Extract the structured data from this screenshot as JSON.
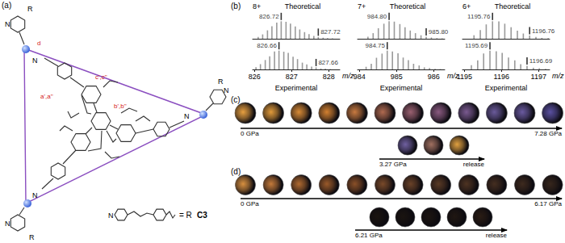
{
  "chart_data": [
    {
      "type": "bar",
      "title": "8+",
      "x_label": "m/z",
      "xlim": [
        825.95,
        828.3
      ],
      "xticks": [
        826,
        827,
        828
      ],
      "ylim": [
        0,
        120
      ],
      "tick_labels": "x",
      "color": "#9a9a9a",
      "series": [
        {
          "name": "Theoretical",
          "x": [
            826.1,
            826.22,
            826.35,
            826.47,
            826.6,
            826.72,
            826.85,
            826.97,
            827.1,
            827.22,
            827.35,
            827.47,
            827.6,
            827.72,
            827.85,
            827.97,
            828.1
          ],
          "values": [
            10,
            25,
            48,
            72,
            92,
            100,
            97,
            86,
            70,
            53,
            38,
            26,
            16,
            10,
            6,
            3,
            2
          ],
          "peak_labels": [
            {
              "value": 826.72,
              "label": "826.72"
            },
            {
              "value": 827.72,
              "label": "827.72"
            }
          ]
        },
        {
          "name": "Experimental",
          "x": [
            826.04,
            826.16,
            826.29,
            826.41,
            826.54,
            826.66,
            826.79,
            826.91,
            827.04,
            827.16,
            827.29,
            827.41,
            827.54,
            827.66,
            827.79,
            827.91,
            828.04
          ],
          "values": [
            12,
            28,
            50,
            70,
            95,
            100,
            94,
            88,
            68,
            55,
            36,
            27,
            15,
            11,
            5,
            4,
            2
          ],
          "peak_labels": [
            {
              "value": 826.66,
              "label": "826.66"
            },
            {
              "value": 827.66,
              "label": "827.66"
            }
          ]
        }
      ]
    },
    {
      "type": "bar",
      "title": "7+",
      "x_label": "m/z",
      "xlim": [
        983.95,
        986.3
      ],
      "xticks": [
        984,
        985,
        986
      ],
      "ylim": [
        0,
        120
      ],
      "tick_labels": "x",
      "color": "#9a9a9a",
      "series": [
        {
          "name": "Theoretical",
          "x": [
            984.23,
            984.37,
            984.51,
            984.66,
            984.8,
            984.94,
            985.09,
            985.23,
            985.37,
            985.51,
            985.66,
            985.8,
            985.94,
            986.09,
            986.23
          ],
          "values": [
            12,
            32,
            60,
            86,
            100,
            98,
            84,
            66,
            47,
            32,
            20,
            12,
            7,
            4,
            2
          ],
          "peak_labels": [
            {
              "value": 984.8,
              "label": "984.80"
            },
            {
              "value": 985.8,
              "label": "985.80"
            }
          ]
        },
        {
          "name": "Experimental",
          "x": [
            984.18,
            984.32,
            984.46,
            984.61,
            984.75,
            984.89,
            985.04,
            985.18,
            985.32,
            985.46,
            985.61,
            985.75,
            985.89,
            986.04,
            986.18
          ],
          "values": [
            14,
            30,
            62,
            84,
            100,
            95,
            86,
            63,
            49,
            30,
            21,
            11,
            8,
            3,
            2
          ],
          "peak_labels": [
            {
              "value": 984.75,
              "label": "984.75"
            }
          ]
        }
      ]
    },
    {
      "type": "bar",
      "title": "6+",
      "x_label": "m/z",
      "xlim": [
        1194.95,
        1197.3
      ],
      "xticks": [
        1195,
        1196,
        1197
      ],
      "ylim": [
        0,
        120
      ],
      "tick_labels": "x",
      "color": "#9a9a9a",
      "series": [
        {
          "name": "Theoretical",
          "x": [
            1195.26,
            1195.43,
            1195.59,
            1195.76,
            1195.93,
            1196.09,
            1196.26,
            1196.43,
            1196.59,
            1196.76,
            1196.93,
            1197.09,
            1197.26
          ],
          "values": [
            20,
            50,
            82,
            100,
            99,
            86,
            66,
            46,
            30,
            18,
            10,
            5,
            3
          ],
          "peak_labels": [
            {
              "value": 1195.76,
              "label": "1195.76"
            },
            {
              "value": 1196.76,
              "label": "1196.76"
            }
          ]
        },
        {
          "name": "Experimental",
          "x": [
            1195.19,
            1195.36,
            1195.52,
            1195.69,
            1195.86,
            1196.02,
            1196.19,
            1196.36,
            1196.52,
            1196.69,
            1196.86,
            1197.02,
            1197.19
          ],
          "values": [
            22,
            48,
            85,
            100,
            96,
            88,
            63,
            48,
            28,
            19,
            9,
            6,
            3
          ],
          "peak_labels": [
            {
              "value": 1195.69,
              "label": "1195.69"
            },
            {
              "value": 1196.69,
              "label": "1196.69"
            }
          ]
        }
      ]
    }
  ],
  "figure": {
    "a": {
      "label": "(a)",
      "site_labels": [
        "d",
        "a',a''",
        "c',c''",
        "b',b''"
      ],
      "atom_labels": [
        "N",
        "N",
        "N",
        "N",
        "N",
        "N"
      ],
      "substituents": [
        "R",
        "R",
        "R"
      ],
      "legend": {
        "atom": "N",
        "text": "= R",
        "compound": "C3"
      }
    },
    "b": {
      "label": "(b)"
    },
    "c": {
      "label": "(c)",
      "rows": [
        {
          "start": "0 GPa",
          "end": "7.28 GPa",
          "colors": [
            "#e8a040",
            "#e09a3a",
            "#d88a35",
            "#d28030",
            "#c87a40",
            "#b06a50",
            "#9a6070",
            "#8a5a80",
            "#7a5a90",
            "#6a5a9a",
            "#6a5aa0",
            "#5a50a0"
          ]
        },
        {
          "start": "3.27 GPa",
          "end": "release",
          "colors": [
            "#7060a0",
            "#a07060",
            "#e0a040"
          ]
        }
      ]
    },
    "d": {
      "label": "(d)",
      "rows": [
        {
          "start": "0 GPa",
          "end": "6.17 GPa",
          "colors": [
            "#d89040",
            "#c47a3a",
            "#b06a30",
            "#9a5a2a",
            "#8a5028",
            "#7a4a2a",
            "#6a4228",
            "#5a3a25",
            "#4e3322",
            "#452e20",
            "#3e2a1e",
            "#36261c"
          ]
        },
        {
          "start": "6.21 GPa",
          "end": "release",
          "colors": [
            "#1a1410",
            "#1a1410",
            "#1c1511",
            "#201712",
            "#2a1c14"
          ]
        }
      ]
    }
  }
}
